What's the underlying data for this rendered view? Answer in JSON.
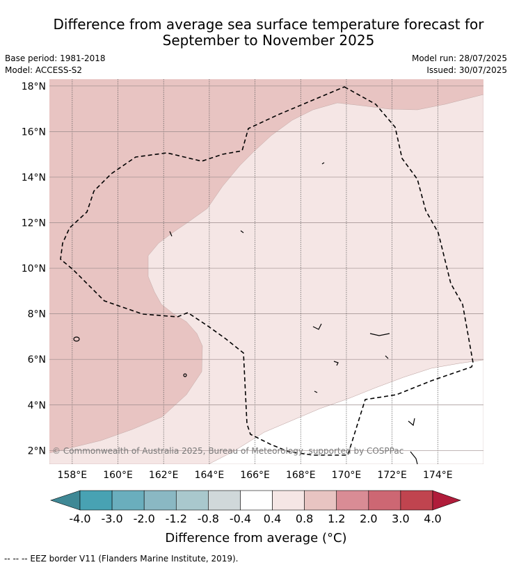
{
  "title_line1": "Difference from average sea surface temperature forecast for",
  "title_line2": "September to November 2025",
  "base_period": "Base period: 1981-2018",
  "model": "Model: ACCESS-S2",
  "model_run": "Model run: 28/07/2025",
  "issued": "Issued: 30/07/2025",
  "copyright": "© Commonwealth of Australia 2025, Bureau of Meteorology, supported by COSPPac",
  "map": {
    "lon_labels": [
      "158°E",
      "160°E",
      "162°E",
      "164°E",
      "166°E",
      "168°E",
      "170°E",
      "172°E",
      "174°E"
    ],
    "lat_labels": [
      "2°N",
      "4°N",
      "6°N",
      "8°N",
      "10°N",
      "12°N",
      "14°N",
      "16°N",
      "18°N"
    ],
    "lon_range": [
      157,
      176
    ],
    "lat_range": [
      1.4,
      18.3
    ]
  },
  "colorbar": {
    "labels": [
      "-4.0",
      "-3.0",
      "-2.0",
      "-1.2",
      "-0.8",
      "-0.4",
      "0.4",
      "0.8",
      "1.2",
      "2.0",
      "3.0",
      "4.0"
    ],
    "colors": [
      "#3f8895",
      "#48a2b3",
      "#6aaebd",
      "#8ab8c3",
      "#a9c8cd",
      "#d0d8da",
      "#ffffff",
      "#f5e6e5",
      "#e8c4c2",
      "#d98c95",
      "#cd6773",
      "#c0444f",
      "#b01c3a"
    ],
    "units_label": "Difference from average (°C)"
  },
  "legend_footnote": "-- -- -- EEZ border V11 (Flanders Marine Institute, 2019)."
}
